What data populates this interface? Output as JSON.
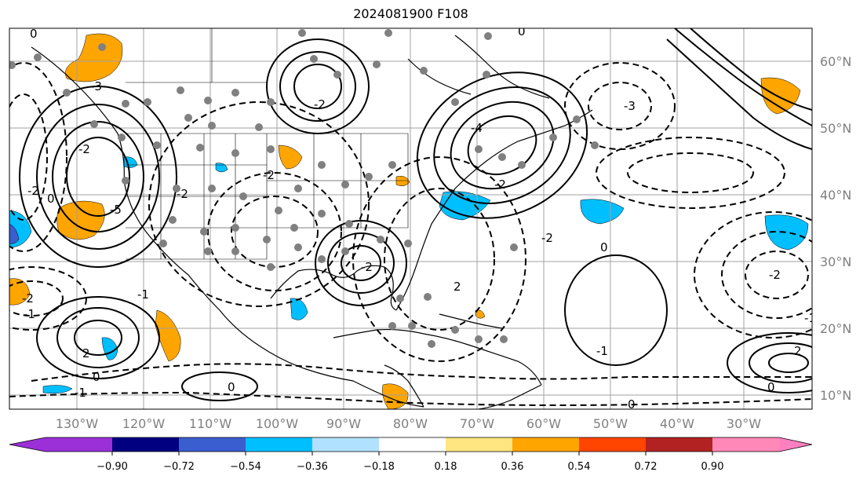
{
  "title": "2024081900 F108",
  "map": {
    "lat_labels": [
      "60°N",
      "50°N",
      "40°N",
      "30°N",
      "20°N",
      "10°N"
    ],
    "lon_labels": [
      "130°W",
      "120°W",
      "110°W",
      "100°W",
      "90°W",
      "80°W",
      "70°W",
      "60°W",
      "50°W",
      "40°W",
      "30°W"
    ],
    "contour_labels": [
      "0",
      "-3",
      "-2",
      "-2",
      "-5",
      "0",
      "0",
      "-2",
      "-4",
      "-2",
      "0",
      "-2",
      "-3",
      "-2",
      "-2",
      "2",
      "2",
      "-1",
      "-2",
      "0",
      "-1",
      "0",
      "2",
      "-1",
      "-2",
      "-2",
      "-1",
      "0",
      "0",
      "-1"
    ]
  },
  "colorbar": {
    "ticks": [
      "−0.90",
      "−0.72",
      "−0.54",
      "−0.36",
      "−0.18",
      "0.18",
      "0.36",
      "0.54",
      "0.72",
      "0.90"
    ],
    "colors": [
      "#9b30d9",
      "#000080",
      "#3a5ed0",
      "#00bfff",
      "#b0e2ff",
      "#ffffff",
      "#ffe680",
      "#ffa500",
      "#ff4500",
      "#b22222",
      "#ff88b8",
      "#ff80c0"
    ]
  }
}
